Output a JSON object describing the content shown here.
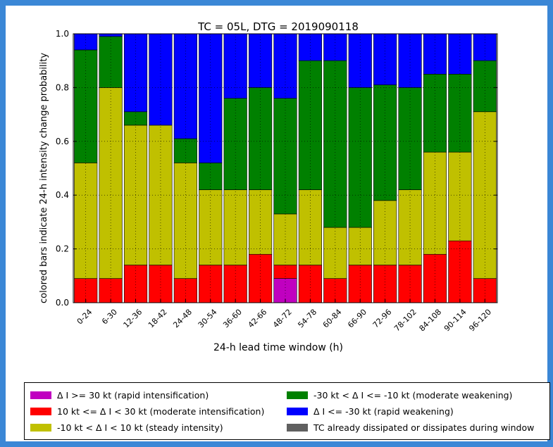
{
  "chart_data": {
    "type": "bar",
    "stacked": true,
    "title": "TC = 05L, DTG = 2019090118",
    "xlabel": "24-h lead time window (h)",
    "ylabel": "colored bars indicate 24-h intensity change probability",
    "ylim": [
      0,
      1.0
    ],
    "yticks": [
      "0.0",
      "0.2",
      "0.4",
      "0.6",
      "0.8",
      "1.0"
    ],
    "grid": true,
    "categories": [
      "0-24",
      "6-30",
      "12-36",
      "18-42",
      "24-48",
      "30-54",
      "36-60",
      "42-66",
      "48-72",
      "54-78",
      "60-84",
      "66-90",
      "72-96",
      "78-102",
      "84-108",
      "90-114",
      "96-120"
    ],
    "series": [
      {
        "key": "ri",
        "color": "#c000c0",
        "values": [
          0,
          0,
          0,
          0,
          0,
          0,
          0,
          0,
          0.09,
          0,
          0,
          0,
          0,
          0,
          0,
          0,
          0
        ]
      },
      {
        "key": "mi",
        "color": "#ff0000",
        "values": [
          0.09,
          0.09,
          0.14,
          0.14,
          0.09,
          0.14,
          0.14,
          0.18,
          0.05,
          0.14,
          0.09,
          0.14,
          0.14,
          0.14,
          0.18,
          0.23,
          0.09
        ]
      },
      {
        "key": "si",
        "color": "#c0c000",
        "values": [
          0.43,
          0.71,
          0.52,
          0.52,
          0.43,
          0.28,
          0.28,
          0.24,
          0.19,
          0.28,
          0.19,
          0.14,
          0.24,
          0.28,
          0.38,
          0.33,
          0.62
        ]
      },
      {
        "key": "mw",
        "color": "#008000",
        "values": [
          0.42,
          0.19,
          0.05,
          0,
          0.09,
          0.1,
          0.34,
          0.38,
          0.43,
          0.48,
          0.62,
          0.52,
          0.43,
          0.38,
          0.29,
          0.29,
          0.19
        ]
      },
      {
        "key": "rw",
        "color": "#0000ff",
        "values": [
          0.06,
          0.01,
          0.29,
          0.34,
          0.39,
          0.48,
          0.24,
          0.2,
          0.24,
          0.1,
          0.1,
          0.2,
          0.19,
          0.2,
          0.15,
          0.15,
          0.1
        ]
      }
    ],
    "legend_placement": "below"
  },
  "legend": {
    "ri": {
      "label": "Δ I >= 30 kt (rapid intensification)",
      "color": "#c000c0"
    },
    "mi": {
      "label": "10 kt <= Δ I < 30 kt (moderate intensification)",
      "color": "#ff0000"
    },
    "si": {
      "label": "-10 kt < Δ I < 10 kt (steady intensity)",
      "color": "#c0c000"
    },
    "mw": {
      "label": "-30 kt < Δ I <= -10 kt (moderate weakening)",
      "color": "#008000"
    },
    "rw": {
      "label": "Δ I <= -30 kt (rapid weakening)",
      "color": "#0000ff"
    },
    "td": {
      "label": "TC already dissipated or dissipates during window",
      "color": "#606060"
    }
  }
}
